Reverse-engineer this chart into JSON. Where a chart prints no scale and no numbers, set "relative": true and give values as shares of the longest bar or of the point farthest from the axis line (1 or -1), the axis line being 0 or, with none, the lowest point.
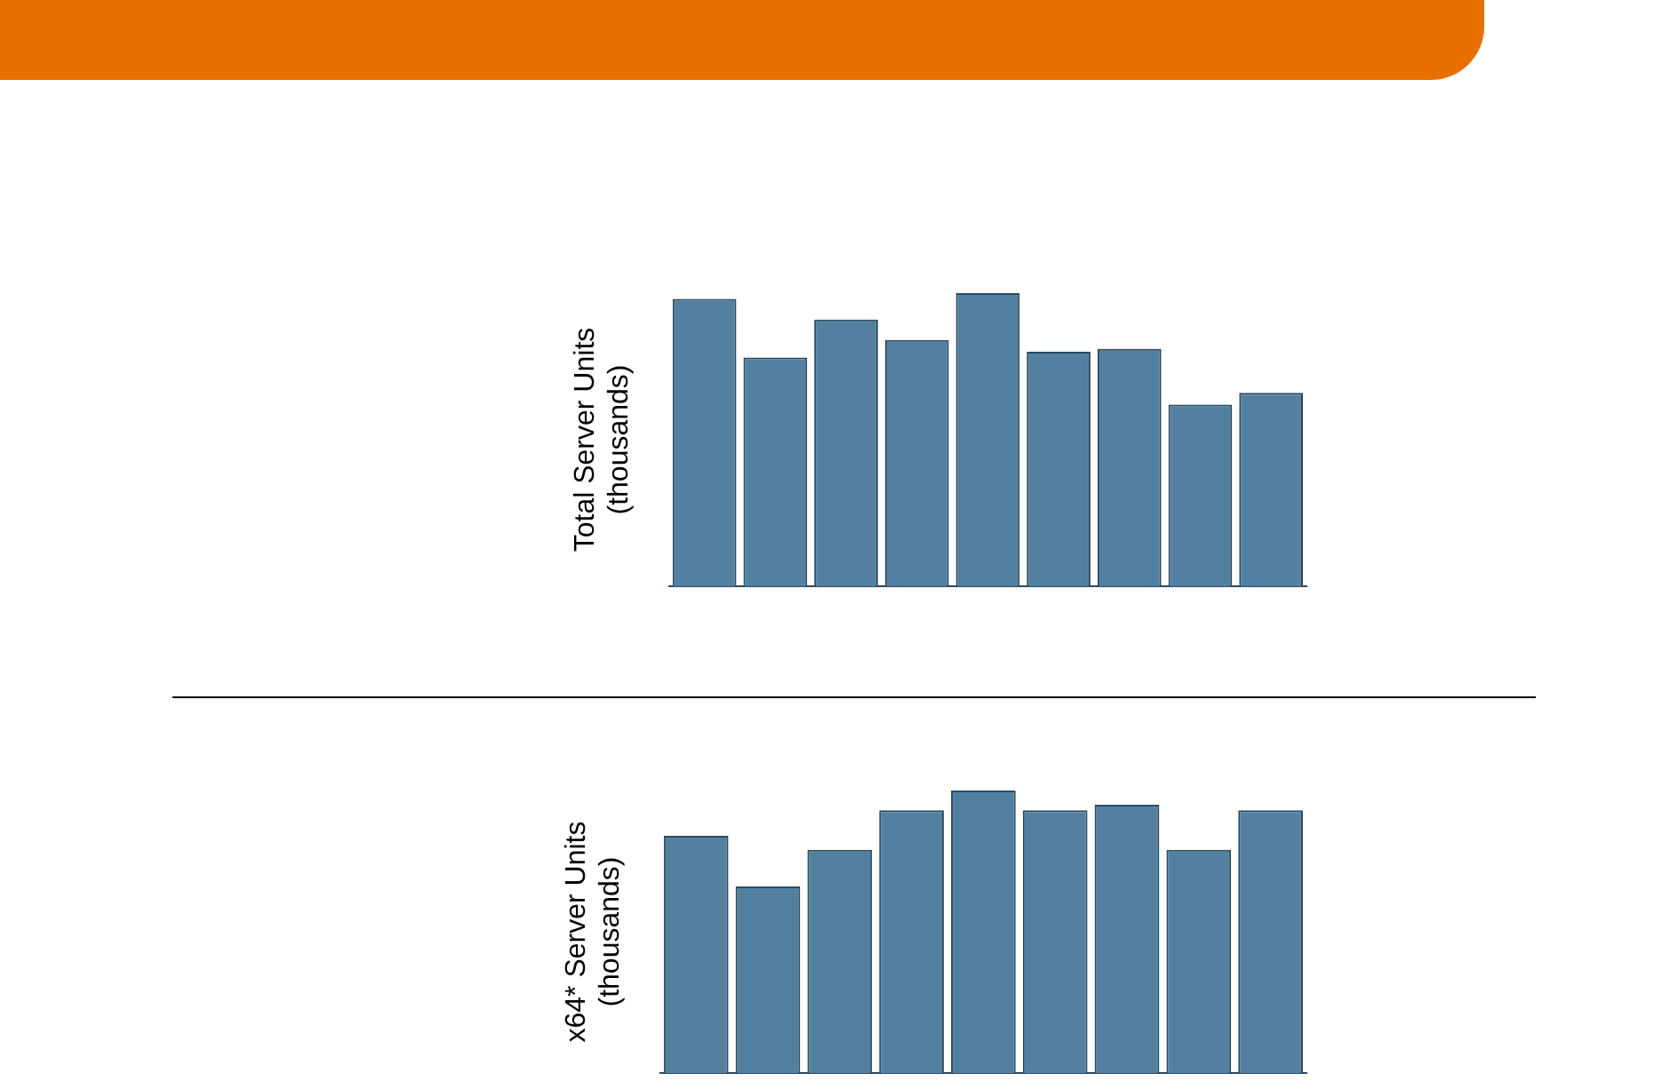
{
  "chart_data": [
    {
      "type": "bar",
      "ylabel": "Total Server Units\n(thousands)",
      "categories": [
        null,
        null,
        null,
        null,
        null,
        null,
        null,
        null,
        null
      ],
      "relative": true,
      "color": "#5380a0",
      "values": [
        0.98,
        0.78,
        0.91,
        0.84,
        1,
        0.8,
        0.81,
        0.62,
        0.66
      ]
    },
    {
      "type": "bar",
      "ylabel": "x64* Server Units\n(thousands)",
      "categories": [
        null,
        null,
        null,
        null,
        null,
        null,
        null,
        null,
        null
      ],
      "relative": true,
      "color": "#5380a0",
      "values": [
        0.84,
        0.66,
        0.79,
        0.93,
        1,
        0.93,
        0.95,
        0.79,
        0.93
      ]
    }
  ]
}
